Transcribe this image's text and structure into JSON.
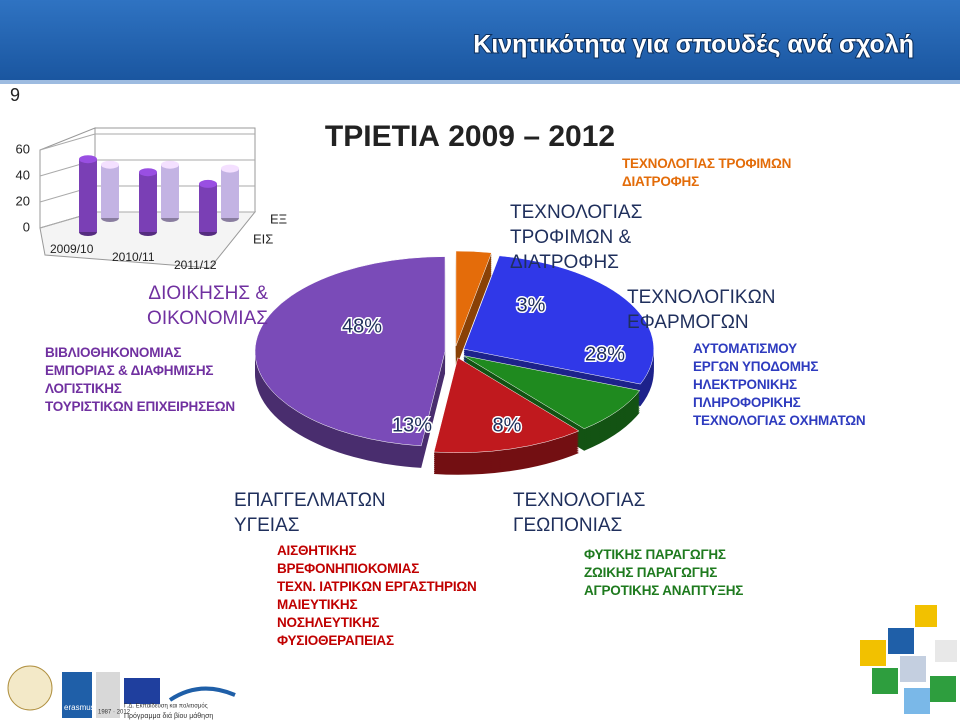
{
  "header": {
    "title": "Κινητικότητα για σπουδές ανά σχολή",
    "page_number": "9"
  },
  "chart_data": [
    {
      "type": "bar3d",
      "categories": [
        "2009/10",
        "2010/11",
        "2011/12"
      ],
      "series": [
        {
          "name": "ΕΞ",
          "color": "#c3b3e3",
          "values": [
            41,
            41,
            38
          ]
        },
        {
          "name": "ΕΙΣ",
          "color": "#7a3fb5",
          "values": [
            56,
            46,
            37
          ]
        }
      ],
      "ylim": [
        0,
        60
      ],
      "yticks": [
        0,
        20,
        40,
        60
      ],
      "grid": true
    },
    {
      "type": "pie",
      "title": "ΤΡΙΕΤΙΑ 2009 – 2012",
      "categories": [
        "ΤΕΧΝΟΛΟΓΙΑΣ ΤΡΟΦΙΜΩΝ & ΔΙΑΤΡΟΦΗΣ",
        "ΤΕΧΝΟΛΟΓΙΚΩΝ ΕΦΑΡΜΟΓΩΝ",
        "ΤΕΧΝΟΛΟΓΙΑΣ ΓΕΩΠΟΝΙΑΣ",
        "ΕΠΑΓΓΕΛΜΑΤΩΝ ΥΓΕΙΑΣ",
        "ΔΙΟΙΚΗΣΗΣ & ΟΙΚΟΝΟΜΙΑΣ"
      ],
      "values": [
        3,
        28,
        8,
        13,
        48
      ],
      "value_labels": [
        "3%",
        "28%",
        "8%",
        "13%",
        "48%"
      ],
      "colors": [
        "#e46c0a",
        "#3038e8",
        "#1f8a1f",
        "#c0191e",
        "#7a4bb8"
      ]
    }
  ],
  "departments": [
    [
      "ΤΕΧΝΟΛΟΓΙΑΣ ΤΡΟΦΙΜΩΝ",
      "ΔΙΑΤΡΟΦΗΣ"
    ],
    [
      "ΑΥΤΟΜΑΤΙΣΜΟΥ",
      "ΕΡΓΩΝ ΥΠΟΔΟΜΗΣ",
      "ΗΛΕΚΤΡΟΝΙΚΗΣ",
      "ΠΛΗΡΟΦΟΡΙΚΗΣ",
      "ΤΕΧΝΟΛΟΓΙΑΣ ΟΧΗΜΑΤΩΝ"
    ],
    [
      "ΦΥΤΙΚΗΣ ΠΑΡΑΓΩΓΗΣ",
      "ΖΩΙΚΗΣ ΠΑΡΑΓΩΓΗΣ",
      "ΑΓΡΟΤΙΚΗΣ ΑΝΑΠΤΥΞΗΣ"
    ],
    [
      "ΑΙΣΘΗΤΙΚΗΣ",
      "ΒΡΕΦΟΝΗΠΙΟΚΟΜΙΑΣ",
      "ΤΕΧΝ. ΙΑΤΡΙΚΩΝ ΕΡΓΑΣΤΗΡΙΩΝ",
      "ΜΑΙΕΥΤΙΚΗΣ",
      "ΝΟΣΗΛΕΥΤΙΚΗΣ",
      "ΦΥΣΙΟΘΕΡΑΠΕΙΑΣ"
    ],
    [
      "ΒΙΒΛΙΟΘΗΚΟΝΟΜΙΑΣ",
      "ΕΜΠΟΡΙΑΣ & ΔΙΑΦΗΜΙΣΗΣ",
      "ΛΟΓΙΣΤΙΚΗΣ",
      "ΤΟΥΡΙΣΤΙΚΩΝ ΕΠΙΧΕΙΡΗΣΕΩΝ"
    ]
  ],
  "footer": {
    "logo_texts": [
      "erasmus",
      "1987 · 2012",
      "Γ.Δ. Εκπαίδευση και πολιτισμός",
      "Πρόγραμμα διά βίου μάθηση"
    ]
  }
}
